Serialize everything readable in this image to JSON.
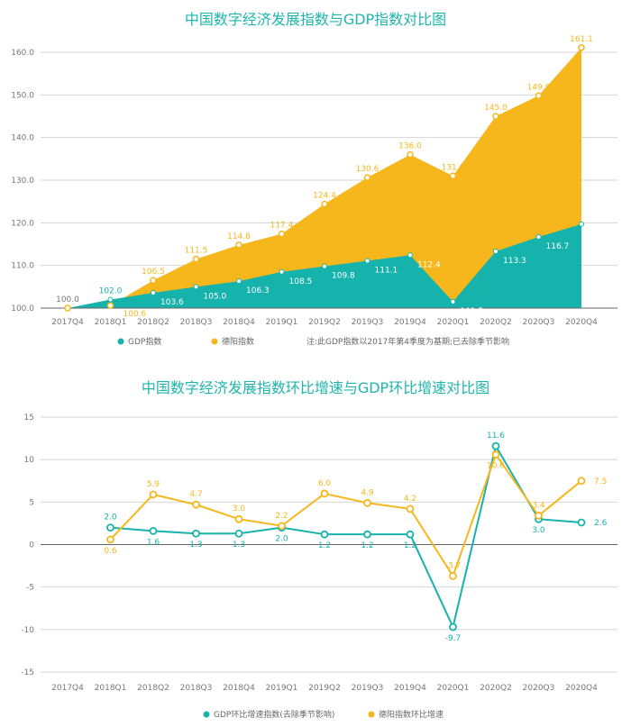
{
  "colors": {
    "gdp": "#16b3ad",
    "deyang": "#f5b71b"
  },
  "chart_data": [
    {
      "type": "area",
      "title": "中国数字经济发展指数与GDP指数对比图",
      "categories": [
        "2017Q4",
        "2018Q1",
        "2018Q2",
        "2018Q3",
        "2018Q4",
        "2019Q1",
        "2019Q2",
        "2019Q3",
        "2019Q4",
        "2020Q1",
        "2020Q2",
        "2020Q3",
        "2020Q4"
      ],
      "ylim": [
        100,
        160
      ],
      "yticks": [
        "100.0",
        "110.0",
        "120.0",
        "130.0",
        "140.0",
        "150.0",
        "160.0"
      ],
      "grid": true,
      "legend_position": "bottom",
      "note": "注:此GDP指数以2017年第4季度为基期;已去除季节影响",
      "series": [
        {
          "name": "GDP指数",
          "values": [
            100.0,
            102.0,
            103.6,
            105.0,
            106.3,
            108.5,
            109.8,
            111.1,
            112.4,
            101.5,
            113.3,
            116.7,
            119.7
          ]
        },
        {
          "name": "德阳指数",
          "values": [
            100.0,
            100.6,
            106.5,
            111.5,
            114.8,
            117.4,
            124.4,
            130.6,
            136.0,
            131.0,
            145.0,
            149.8,
            161.1
          ]
        }
      ]
    },
    {
      "type": "line",
      "title": "中国数字经济发展指数环比增速与GDP环比增速对比图",
      "categories": [
        "2017Q4",
        "2018Q1",
        "2018Q2",
        "2018Q3",
        "2018Q4",
        "2019Q1",
        "2019Q2",
        "2019Q3",
        "2019Q4",
        "2020Q1",
        "2020Q2",
        "2020Q3",
        "2020Q4"
      ],
      "ylim": [
        -15,
        15
      ],
      "yticks": [
        "-15",
        "-10",
        "-5",
        "0",
        "5",
        "10",
        "15"
      ],
      "grid": true,
      "legend_position": "bottom",
      "series": [
        {
          "name": "GDP环比增速指数(去除季节影响)",
          "values": [
            null,
            2.0,
            1.6,
            1.3,
            1.3,
            2.0,
            1.2,
            1.2,
            1.2,
            -9.7,
            11.6,
            3.0,
            2.6
          ]
        },
        {
          "name": "德阳指数环比增速",
          "values": [
            null,
            0.6,
            5.9,
            4.7,
            3.0,
            2.2,
            6.0,
            4.9,
            4.2,
            -3.7,
            10.6,
            3.4,
            7.5
          ]
        }
      ]
    }
  ]
}
